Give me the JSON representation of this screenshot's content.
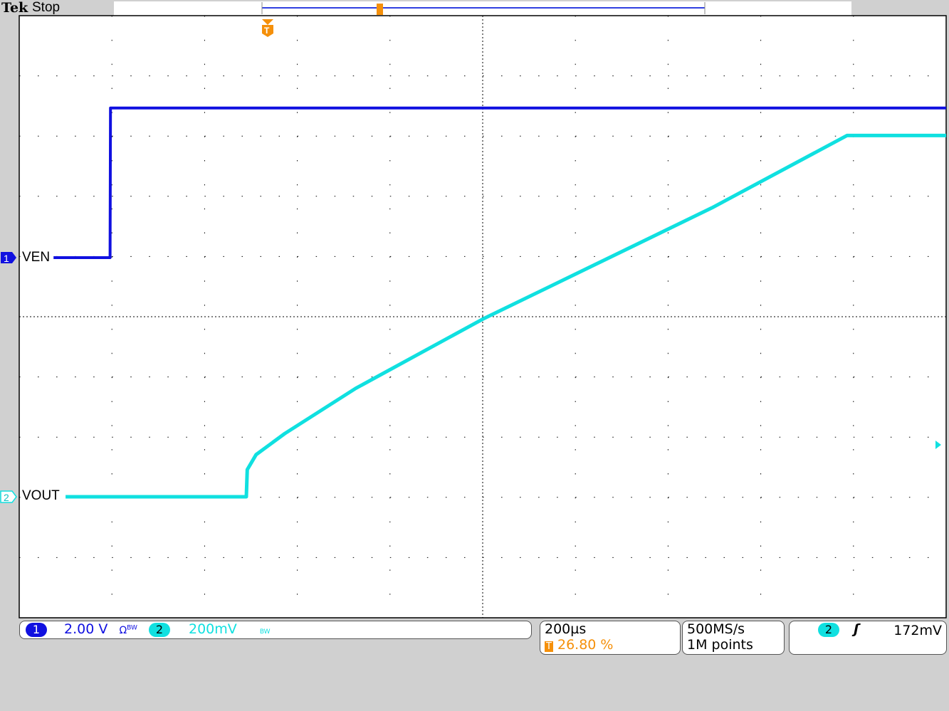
{
  "header": {
    "brand": "Tek",
    "status": "Stop"
  },
  "channels": [
    {
      "number": "1",
      "label": "VEN",
      "scale": "2.00 V",
      "bw_icon": "Ω bandwidth-limit",
      "color": "#1010e0"
    },
    {
      "number": "2",
      "label": "VOUT",
      "scale": "200mV",
      "bw_icon": "bandwidth-limit",
      "color": "#10e0e0"
    }
  ],
  "timebase": {
    "scale": "200µs",
    "trigger_position": "26.80 %"
  },
  "acquisition": {
    "sample_rate": "500MS/s",
    "record_length": "1M points"
  },
  "trigger": {
    "source": "2",
    "slope": "rising",
    "level": "172mV"
  },
  "colors": {
    "trigger_marker": "#f5900a",
    "grid": "#000000",
    "background": "#ffffff"
  },
  "chart_data": {
    "type": "line",
    "xunit": "µs",
    "xlim": [
      -536,
      1464
    ],
    "x_divisions": 10,
    "y_divisions": 10,
    "grid": true,
    "series": [
      {
        "name": "VEN",
        "channel": 1,
        "unit": "V",
        "volts_per_div": 2,
        "points": [
          [
            -462,
            0
          ],
          [
            -340,
            0
          ],
          [
            -339,
            4.97
          ],
          [
            1464,
            4.97
          ]
        ]
      },
      {
        "name": "VOUT",
        "channel": 2,
        "unit": "V",
        "volts_per_div": 0.2,
        "points": [
          [
            -436,
            0
          ],
          [
            -46,
            0
          ],
          [
            -44,
            0.09
          ],
          [
            -25,
            0.14
          ],
          [
            37,
            0.21
          ],
          [
            190,
            0.36
          ],
          [
            464,
            0.59
          ],
          [
            959,
            0.96
          ],
          [
            1250,
            1.2
          ],
          [
            1464,
            1.2
          ]
        ]
      }
    ],
    "trigger_level_V": 0.172
  }
}
